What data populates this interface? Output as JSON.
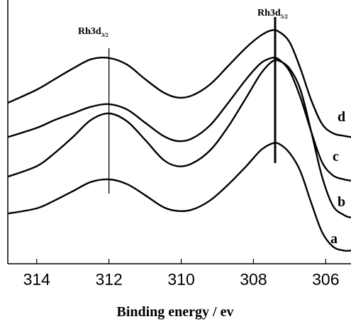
{
  "chart_data": {
    "type": "line",
    "title": "",
    "xlabel": "Binding energy / ev",
    "ylabel": "",
    "x_reversed": true,
    "xlim": [
      314.8,
      305.3
    ],
    "ylim": [
      0,
      100
    ],
    "x_ticks": [
      314,
      312,
      310,
      308,
      306
    ],
    "x_tick_labels": [
      "314",
      "312",
      "310",
      "308",
      "306"
    ],
    "grid": false,
    "legend": "none",
    "series": [
      {
        "label": "a",
        "points": [
          [
            314.8,
            19
          ],
          [
            314,
            21
          ],
          [
            313.5,
            24
          ],
          [
            313,
            27.5
          ],
          [
            312.5,
            31
          ],
          [
            312,
            32
          ],
          [
            311.5,
            30.2
          ],
          [
            311,
            26
          ],
          [
            310.5,
            21.5
          ],
          [
            310.1,
            20
          ],
          [
            309.7,
            20.5
          ],
          [
            309.2,
            24
          ],
          [
            308.7,
            30
          ],
          [
            308.2,
            37
          ],
          [
            307.8,
            43
          ],
          [
            307.5,
            45.5
          ],
          [
            307.3,
            45.5
          ],
          [
            307,
            42
          ],
          [
            306.7,
            35
          ],
          [
            306.4,
            23
          ],
          [
            306.1,
            12
          ],
          [
            305.8,
            6.5
          ],
          [
            305.5,
            5
          ],
          [
            305.3,
            5
          ]
        ]
      },
      {
        "label": "b",
        "points": [
          [
            314.8,
            33
          ],
          [
            314,
            37
          ],
          [
            313.5,
            42
          ],
          [
            313,
            48
          ],
          [
            312.5,
            54.5
          ],
          [
            312,
            57
          ],
          [
            311.5,
            54
          ],
          [
            311,
            47
          ],
          [
            310.5,
            39.5
          ],
          [
            310.1,
            37
          ],
          [
            309.7,
            38
          ],
          [
            309.2,
            43
          ],
          [
            308.7,
            52
          ],
          [
            308.2,
            63
          ],
          [
            307.8,
            72
          ],
          [
            307.5,
            76.5
          ],
          [
            307.3,
            77
          ],
          [
            307,
            74
          ],
          [
            306.7,
            66
          ],
          [
            306.4,
            50
          ],
          [
            306.1,
            33
          ],
          [
            305.8,
            22
          ],
          [
            305.5,
            18.5
          ],
          [
            305.3,
            17.5
          ]
        ]
      },
      {
        "label": "c",
        "points": [
          [
            314.8,
            48
          ],
          [
            314,
            51.5
          ],
          [
            313.5,
            54.5
          ],
          [
            313,
            57
          ],
          [
            312.5,
            59.5
          ],
          [
            312,
            60.5
          ],
          [
            311.5,
            58.5
          ],
          [
            311,
            53.5
          ],
          [
            310.5,
            48.5
          ],
          [
            310.1,
            46.5
          ],
          [
            309.7,
            47.5
          ],
          [
            309.2,
            52.5
          ],
          [
            308.7,
            61
          ],
          [
            308.2,
            70
          ],
          [
            307.8,
            76
          ],
          [
            307.5,
            78
          ],
          [
            307.3,
            77.5
          ],
          [
            307,
            73
          ],
          [
            306.7,
            63
          ],
          [
            306.4,
            50
          ],
          [
            306.1,
            38.5
          ],
          [
            305.8,
            33.5
          ],
          [
            305.5,
            32
          ],
          [
            305.3,
            31.5
          ]
        ]
      },
      {
        "label": "d",
        "points": [
          [
            314.8,
            61
          ],
          [
            314,
            66
          ],
          [
            313.5,
            70
          ],
          [
            313,
            74
          ],
          [
            312.5,
            77.5
          ],
          [
            312,
            78
          ],
          [
            311.5,
            75.5
          ],
          [
            311,
            70
          ],
          [
            310.5,
            65
          ],
          [
            310.1,
            63
          ],
          [
            309.7,
            63.8
          ],
          [
            309.2,
            68
          ],
          [
            308.7,
            75
          ],
          [
            308.2,
            82
          ],
          [
            307.8,
            86.5
          ],
          [
            307.5,
            88.5
          ],
          [
            307.3,
            88
          ],
          [
            307,
            84
          ],
          [
            306.7,
            74
          ],
          [
            306.4,
            62
          ],
          [
            306.1,
            53
          ],
          [
            305.8,
            49.5
          ],
          [
            305.5,
            48.5
          ],
          [
            305.3,
            48
          ]
        ]
      }
    ],
    "annotations": [
      {
        "main": "Rh3d",
        "sub": "3/2",
        "x": 312
      },
      {
        "main": "Rh3d",
        "sub": "5/2",
        "x": 307.4
      }
    ]
  }
}
